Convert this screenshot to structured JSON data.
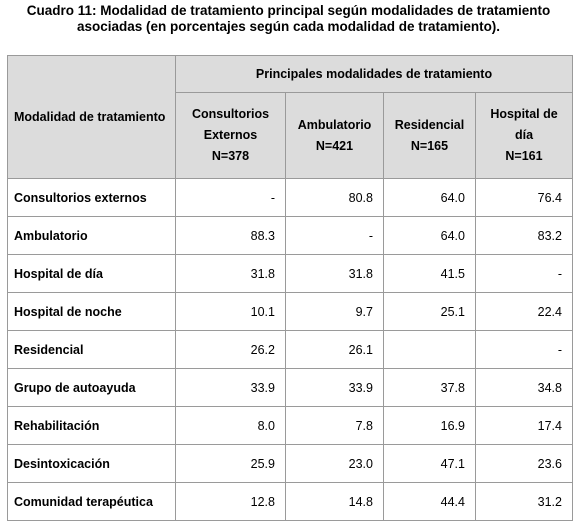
{
  "title": [
    "Cuadro 11: Modalidad de tratamiento principal según modalidades de tratamiento",
    "asociadas (en porcentajes según cada modalidad de tratamiento)."
  ],
  "table": {
    "row_header": "Modalidad de tratamiento",
    "group_header": "Principales modalidades de tratamiento",
    "columns": [
      [
        "Consultorios",
        "Externos",
        "N=378"
      ],
      [
        "Ambulatorio",
        "N=421"
      ],
      [
        "Residencial",
        "N=165"
      ],
      [
        "Hospital de",
        "día",
        "N=161"
      ]
    ],
    "rows": [
      [
        "Consultorios externos",
        "-",
        "80.8",
        "64.0",
        "76.4"
      ],
      [
        "Ambulatorio",
        "88.3",
        "-",
        "64.0",
        "83.2"
      ],
      [
        "Hospital de día",
        "31.8",
        "31.8",
        "41.5",
        "-"
      ],
      [
        "Hospital de noche",
        "10.1",
        "9.7",
        "25.1",
        "22.4"
      ],
      [
        "Residencial",
        "26.2",
        "26.1",
        null,
        "-"
      ],
      [
        "Grupo de autoayuda",
        "33.9",
        "33.9",
        "37.8",
        "34.8"
      ],
      [
        "Rehabilitación",
        "8.0",
        "7.8",
        "16.9",
        "17.4"
      ],
      [
        "Desintoxicación",
        "25.9",
        "23.0",
        "47.1",
        "23.6"
      ],
      [
        "Comunidad terapéutica",
        "12.8",
        "14.8",
        "44.4",
        "31.2"
      ]
    ]
  }
}
